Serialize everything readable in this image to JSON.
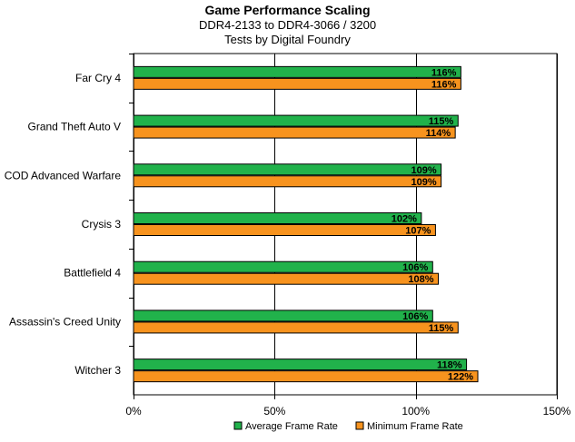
{
  "chart_data": {
    "type": "bar",
    "orientation": "horizontal",
    "title": "Game Performance Scaling",
    "subtitle": [
      "DDR4-2133 to DDR4-3066 / 3200",
      "Tests by Digital Foundry"
    ],
    "categories": [
      "Far Cry 4",
      "Grand Theft Auto V",
      "COD Advanced Warfare",
      "Crysis 3",
      "Battlefield 4",
      "Assassin's Creed Unity",
      "Witcher 3"
    ],
    "series": [
      {
        "name": "Average Frame Rate",
        "values": [
          116,
          115,
          109,
          102,
          106,
          106,
          118
        ],
        "labels": [
          "116%",
          "115%",
          "109%",
          "102%",
          "106%",
          "106%",
          "118%"
        ],
        "color": "#21b24b"
      },
      {
        "name": "Minimum Frame Rate",
        "values": [
          116,
          114,
          109,
          107,
          108,
          115,
          122
        ],
        "labels": [
          "116%",
          "114%",
          "109%",
          "107%",
          "108%",
          "115%",
          "122%"
        ],
        "color": "#f7931e"
      }
    ],
    "x_ticks": [
      "0%",
      "50%",
      "100%",
      "150%"
    ],
    "xlim": [
      0,
      150
    ],
    "legend": "bottom",
    "grid": "vertical"
  }
}
